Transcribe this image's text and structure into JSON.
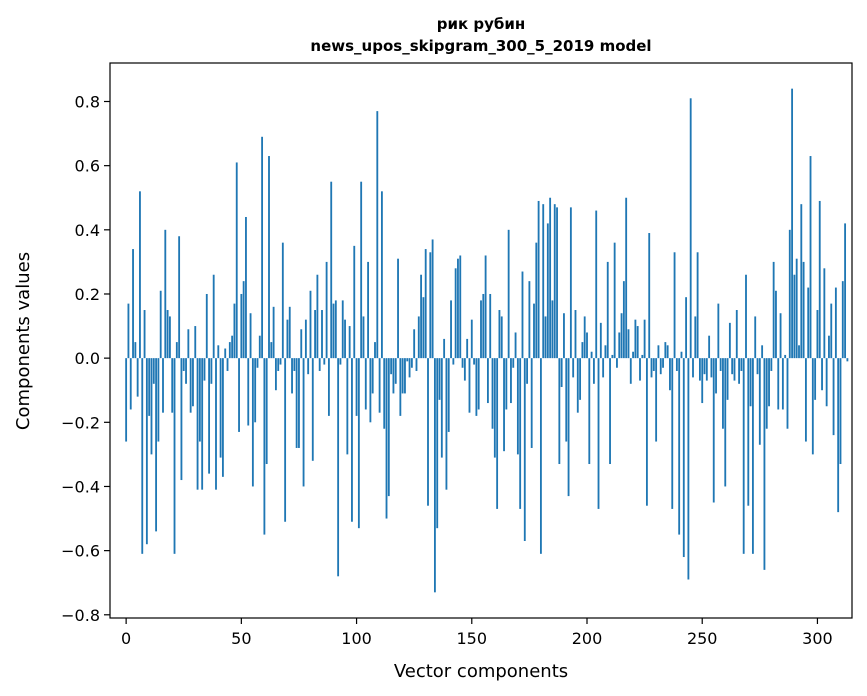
{
  "chart_data": {
    "type": "bar",
    "title_line1": "рик рубин",
    "title_line2": "news_upos_skipgram_300_5_2019 model",
    "xlabel": "Vector components",
    "ylabel": "Components values",
    "xlim": [
      -7,
      315
    ],
    "ylim": [
      -0.81,
      0.92
    ],
    "xticks": [
      0,
      50,
      100,
      150,
      200,
      250,
      300
    ],
    "yticks": [
      -0.8,
      -0.6,
      -0.4,
      -0.2,
      0.0,
      0.2,
      0.4,
      0.6,
      0.8
    ],
    "ytick_labels": [
      "−0.8",
      "−0.6",
      "−0.4",
      "−0.2",
      "0.0",
      "0.2",
      "0.4",
      "0.6",
      "0.8"
    ],
    "bar_color": "#1f77b4",
    "values": [
      -0.26,
      0.17,
      -0.16,
      0.34,
      0.05,
      -0.12,
      0.52,
      -0.61,
      0.15,
      -0.58,
      -0.18,
      -0.3,
      -0.08,
      -0.54,
      -0.26,
      0.21,
      -0.17,
      0.4,
      0.15,
      0.13,
      -0.17,
      -0.61,
      0.05,
      0.38,
      -0.38,
      -0.04,
      -0.08,
      0.09,
      -0.17,
      -0.15,
      0.1,
      -0.41,
      -0.26,
      -0.41,
      -0.07,
      0.2,
      -0.36,
      -0.08,
      0.26,
      -0.41,
      0.04,
      -0.31,
      -0.37,
      0.03,
      -0.04,
      0.05,
      0.07,
      0.17,
      0.61,
      -0.23,
      0.2,
      0.24,
      0.44,
      -0.21,
      0.14,
      -0.4,
      -0.2,
      -0.03,
      0.07,
      0.69,
      -0.55,
      -0.33,
      0.63,
      0.05,
      0.16,
      -0.1,
      -0.04,
      -0.02,
      0.36,
      -0.51,
      0.12,
      0.16,
      -0.11,
      -0.04,
      -0.28,
      -0.28,
      0.09,
      -0.4,
      0.12,
      -0.05,
      0.21,
      -0.32,
      0.15,
      0.26,
      -0.04,
      0.15,
      -0.02,
      0.3,
      -0.18,
      0.55,
      0.17,
      0.18,
      -0.68,
      -0.02,
      0.18,
      0.12,
      -0.3,
      0.1,
      -0.51,
      0.35,
      -0.18,
      -0.53,
      0.55,
      0.13,
      -0.16,
      0.3,
      -0.2,
      -0.11,
      0.05,
      0.77,
      -0.17,
      0.52,
      -0.22,
      -0.5,
      -0.43,
      -0.05,
      -0.11,
      -0.08,
      0.31,
      -0.18,
      -0.11,
      -0.11,
      -0.01,
      -0.06,
      -0.03,
      0.09,
      -0.04,
      0.13,
      0.26,
      0.19,
      0.34,
      -0.46,
      0.33,
      0.37,
      -0.73,
      -0.53,
      -0.13,
      -0.31,
      0.06,
      -0.41,
      -0.23,
      0.18,
      -0.02,
      0.28,
      0.31,
      0.32,
      -0.03,
      -0.07,
      0.06,
      -0.17,
      0.12,
      -0.02,
      -0.18,
      -0.16,
      0.18,
      0.2,
      0.32,
      -0.14,
      0.2,
      -0.22,
      -0.31,
      -0.47,
      0.15,
      0.13,
      -0.29,
      -0.16,
      0.4,
      -0.14,
      -0.03,
      0.08,
      -0.3,
      -0.47,
      0.27,
      -0.57,
      -0.08,
      0.24,
      -0.28,
      0.17,
      0.36,
      0.49,
      -0.61,
      0.48,
      0.13,
      0.42,
      0.5,
      0.18,
      0.48,
      0.47,
      -0.33,
      -0.09,
      0.14,
      -0.26,
      -0.43,
      0.47,
      -0.06,
      0.15,
      -0.17,
      -0.13,
      0.05,
      0.13,
      0.08,
      -0.33,
      0.02,
      -0.08,
      0.46,
      -0.47,
      0.11,
      -0.06,
      0.04,
      0.3,
      -0.33,
      0.01,
      0.36,
      -0.03,
      0.08,
      0.14,
      0.24,
      0.5,
      0.09,
      -0.08,
      0.02,
      0.12,
      0.1,
      -0.07,
      0.01,
      0.12,
      -0.46,
      0.39,
      -0.06,
      -0.04,
      -0.26,
      0.04,
      -0.05,
      -0.03,
      0.05,
      0.04,
      -0.1,
      -0.47,
      0.33,
      -0.04,
      -0.55,
      0.02,
      -0.62,
      0.19,
      -0.69,
      0.81,
      -0.06,
      0.13,
      0.33,
      -0.07,
      -0.14,
      -0.05,
      -0.07,
      0.07,
      -0.06,
      -0.45,
      -0.11,
      0.17,
      -0.04,
      -0.22,
      -0.4,
      -0.13,
      0.11,
      -0.05,
      -0.07,
      0.15,
      -0.08,
      -0.04,
      -0.61,
      0.26,
      -0.46,
      -0.15,
      -0.61,
      0.13,
      -0.05,
      -0.27,
      0.04,
      -0.66,
      -0.22,
      -0.15,
      -0.04,
      0.3,
      0.21,
      -0.16,
      0.14,
      -0.16,
      0.01,
      -0.22,
      0.4,
      0.84,
      0.26,
      0.31,
      0.04,
      0.48,
      0.3,
      -0.26,
      0.22,
      0.63,
      -0.3,
      -0.13,
      0.15,
      0.49,
      -0.1,
      0.28,
      -0.15,
      0.07,
      0.17,
      -0.24,
      0.22,
      -0.48,
      -0.33,
      0.24,
      0.42,
      -0.01
    ]
  }
}
